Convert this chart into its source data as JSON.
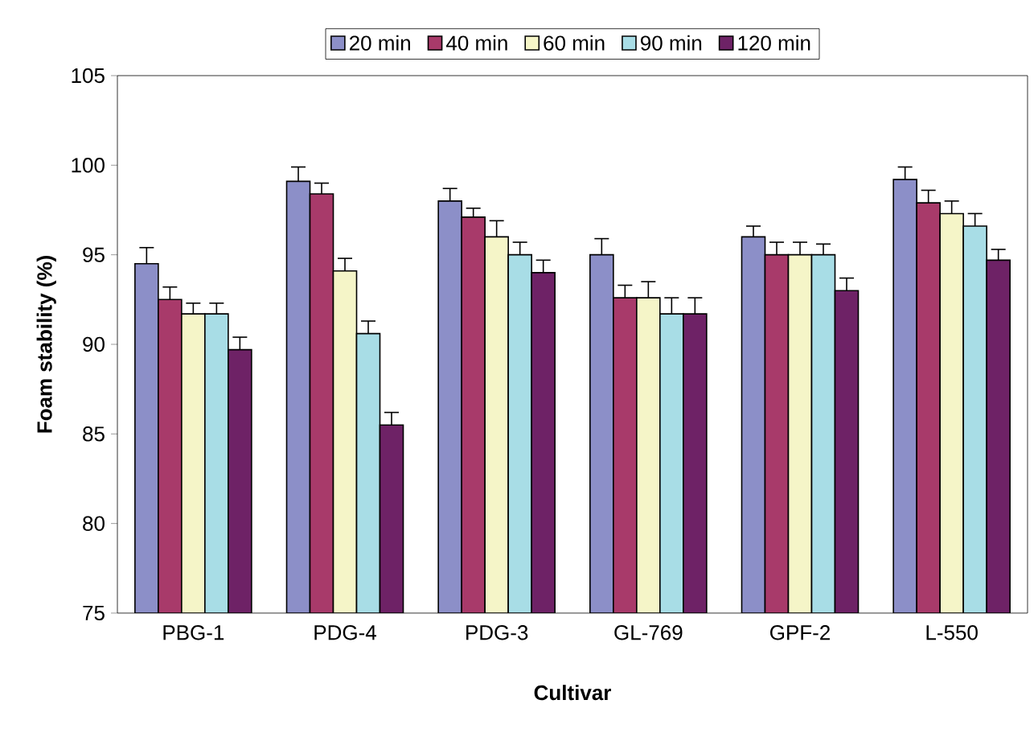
{
  "chart_data": {
    "type": "bar",
    "xlabel": "Cultivar",
    "ylabel": "Foam stability (%)",
    "categories": [
      "PBG-1",
      "PDG-4",
      "PDG-3",
      "GL-769",
      "GPF-2",
      "L-550"
    ],
    "series": [
      {
        "name": "20 min",
        "color": "#8c8fc8",
        "values": [
          94.5,
          99.1,
          98.0,
          95.0,
          96.0,
          99.2
        ],
        "errors": [
          0.9,
          0.8,
          0.7,
          0.9,
          0.6,
          0.7
        ]
      },
      {
        "name": "40 min",
        "color": "#a83a6a",
        "values": [
          92.5,
          98.4,
          97.1,
          92.6,
          95.0,
          97.9
        ],
        "errors": [
          0.7,
          0.6,
          0.5,
          0.7,
          0.7,
          0.7
        ]
      },
      {
        "name": "60 min",
        "color": "#f5f5c8",
        "values": [
          91.7,
          94.1,
          96.0,
          92.6,
          95.0,
          97.3
        ],
        "errors": [
          0.6,
          0.7,
          0.9,
          0.9,
          0.7,
          0.7
        ]
      },
      {
        "name": "90 min",
        "color": "#a8dde6",
        "values": [
          91.7,
          90.6,
          95.0,
          91.7,
          95.0,
          96.6
        ],
        "errors": [
          0.6,
          0.7,
          0.7,
          0.9,
          0.6,
          0.7
        ]
      },
      {
        "name": "120 min",
        "color": "#6e2266",
        "values": [
          89.7,
          85.5,
          94.0,
          91.7,
          93.0,
          94.7
        ],
        "errors": [
          0.7,
          0.7,
          0.7,
          0.9,
          0.7,
          0.6
        ]
      }
    ],
    "ylim": [
      75,
      105
    ],
    "yticks": [
      75,
      80,
      85,
      90,
      95,
      100,
      105
    ],
    "grid": false,
    "legend": "top"
  }
}
